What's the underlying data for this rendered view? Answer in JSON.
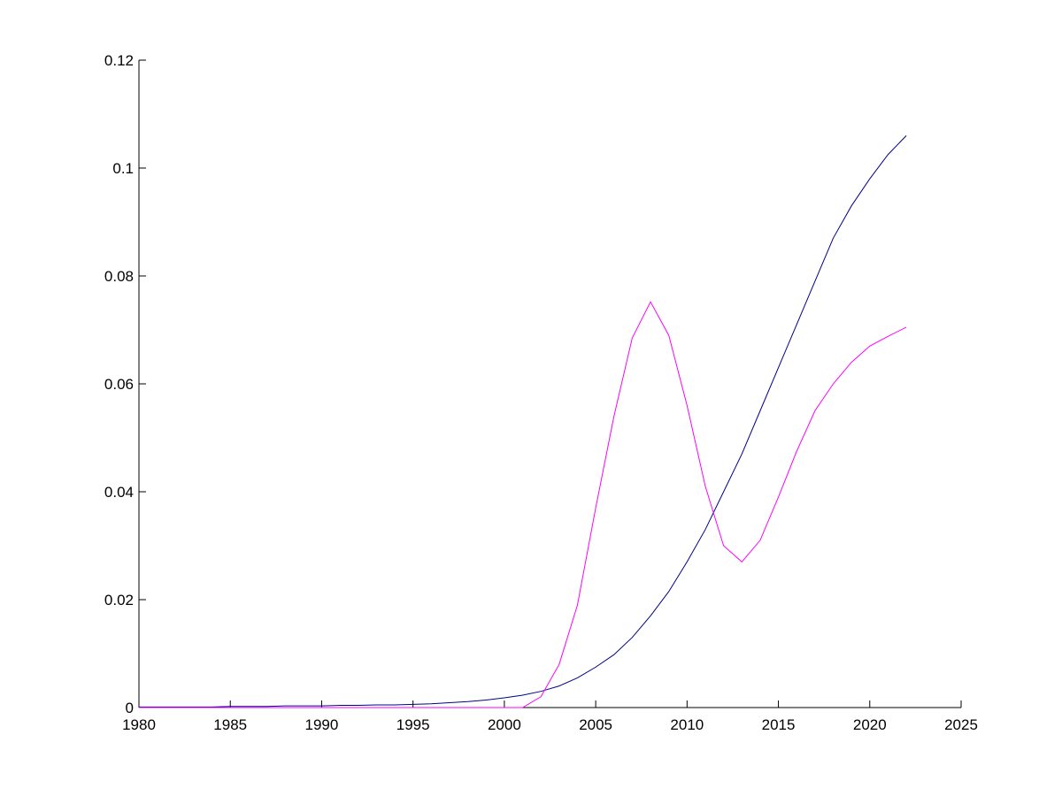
{
  "chart_data": {
    "type": "line",
    "x": [
      1980,
      1981,
      1982,
      1983,
      1984,
      1985,
      1986,
      1987,
      1988,
      1989,
      1990,
      1991,
      1992,
      1993,
      1994,
      1995,
      1996,
      1997,
      1998,
      1999,
      2000,
      2001,
      2002,
      2003,
      2004,
      2005,
      2006,
      2007,
      2008,
      2009,
      2010,
      2011,
      2012,
      2013,
      2014,
      2015,
      2016,
      2017,
      2018,
      2019,
      2020,
      2021,
      2022
    ],
    "series": [
      {
        "color": "#00008b",
        "values": [
          0.0001,
          0.0001,
          0.0001,
          0.0001,
          0.0001,
          0.0002,
          0.0002,
          0.0002,
          0.0003,
          0.0003,
          0.0003,
          0.0004,
          0.0004,
          0.0005,
          0.0005,
          0.0006,
          0.0007,
          0.0009,
          0.0011,
          0.0014,
          0.0018,
          0.0023,
          0.003,
          0.004,
          0.0055,
          0.0075,
          0.0098,
          0.013,
          0.017,
          0.0215,
          0.027,
          0.033,
          0.04,
          0.047,
          0.055,
          0.063,
          0.071,
          0.079,
          0.087,
          0.093,
          0.098,
          0.1025,
          0.106
        ]
      },
      {
        "color": "#ff00ff",
        "values": [
          0,
          0,
          0,
          0,
          0,
          0,
          0,
          0,
          0,
          0,
          0,
          0,
          0,
          0,
          0,
          0,
          0,
          0,
          0,
          0,
          0,
          0,
          0.002,
          0.008,
          0.019,
          0.037,
          0.054,
          0.0685,
          0.0752,
          0.069,
          0.056,
          0.041,
          0.03,
          0.027,
          0.031,
          0.039,
          0.0475,
          0.055,
          0.06,
          0.064,
          0.067,
          0.0688,
          0.0705
        ]
      }
    ],
    "xlim": [
      1980,
      2025
    ],
    "xticks": [
      1980,
      1985,
      1990,
      1995,
      2000,
      2005,
      2010,
      2015,
      2020,
      2025
    ],
    "ylim": [
      0,
      0.12
    ],
    "yticks": [
      0,
      0.02,
      0.04,
      0.06,
      0.08,
      0.1,
      0.12
    ]
  }
}
